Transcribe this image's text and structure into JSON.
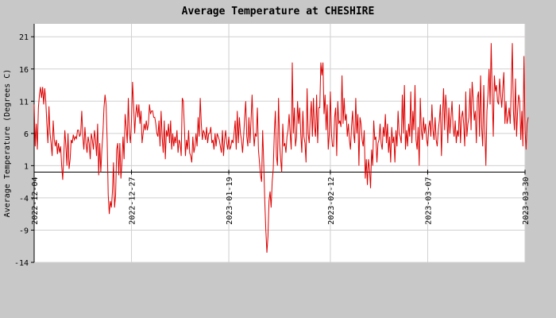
{
  "chart_data": {
    "type": "line",
    "title": "Average Temperature at CHESHIRE",
    "xlabel": "",
    "ylabel": "Average Temperature (Degrees C)",
    "ylim": [
      -14,
      23
    ],
    "yticks": [
      -14,
      -9,
      -4,
      1,
      6,
      11,
      16,
      21
    ],
    "xlim": [
      "2022-12-04",
      "2023-03-30"
    ],
    "xticks": [
      "2022-12-04",
      "2022-12-27",
      "2023-01-19",
      "2023-02-12",
      "2023-03-07",
      "2023-03-30"
    ],
    "grid": true,
    "baseline": 0,
    "colors": {
      "line": "#dd0000",
      "plot_bg": "#ffffff",
      "frame_bg": "#c8c8c8",
      "grid": "#d0d0d0"
    },
    "series": [
      {
        "x_start": "2022-12-04",
        "x_step_hours": 6,
        "values": [
          10.5,
          4.0,
          7.5,
          3.5,
          10.0,
          12.0,
          13.2,
          11.5,
          13.2,
          10.5,
          13.0,
          11.0,
          7.5,
          4.5,
          10.2,
          6.0,
          4.5,
          2.5,
          8.0,
          5.0,
          4.0,
          5.0,
          2.8,
          4.5,
          3.0,
          4.0,
          1.0,
          -1.2,
          2.5,
          6.5,
          4.0,
          1.0,
          6.0,
          0.5,
          2.0,
          5.0,
          4.5,
          5.8,
          5.0,
          5.5,
          5.2,
          6.5,
          6.5,
          5.5,
          6.0,
          9.5,
          5.5,
          3.5,
          7.0,
          4.5,
          3.0,
          5.5,
          4.5,
          2.0,
          6.0,
          5.0,
          3.5,
          6.5,
          5.0,
          2.5,
          7.5,
          -0.5,
          4.5,
          0.0,
          3.5,
          6.0,
          10.0,
          12.0,
          10.5,
          5.0,
          -3.5,
          -6.5,
          -4.5,
          -5.5,
          -3.0,
          1.5,
          -5.5,
          -3.5,
          3.5,
          4.5,
          -0.5,
          4.5,
          -1.0,
          1.5,
          5.5,
          2.0,
          9.0,
          7.0,
          4.5,
          11.5,
          6.0,
          4.5,
          8.0,
          14.0,
          10.5,
          6.0,
          9.0,
          10.5,
          8.5,
          10.5,
          7.5,
          9.5,
          4.5,
          6.0,
          7.5,
          6.5,
          8.0,
          6.5,
          7.5,
          10.5,
          9.0,
          9.5,
          9.5,
          8.5,
          8.5,
          7.5,
          6.0,
          5.5,
          8.0,
          4.0,
          9.5,
          5.5,
          3.0,
          8.0,
          2.0,
          6.5,
          5.5,
          7.5,
          4.5,
          8.0,
          3.5,
          6.0,
          4.0,
          5.5,
          4.5,
          6.5,
          3.0,
          5.0,
          4.5,
          2.5,
          11.5,
          11.0,
          7.0,
          2.5,
          5.0,
          3.5,
          6.5,
          3.0,
          2.5,
          1.5,
          5.5,
          3.0,
          4.0,
          6.0,
          4.0,
          8.5,
          5.5,
          11.5,
          7.5,
          5.0,
          6.5,
          6.0,
          5.0,
          7.0,
          4.5,
          6.0,
          6.0,
          7.0,
          4.5,
          5.0,
          3.5,
          6.0,
          4.0,
          6.0,
          5.5,
          5.0,
          4.0,
          3.0,
          6.5,
          2.5,
          5.0,
          6.5,
          4.5,
          3.5,
          5.5,
          3.5,
          4.0,
          5.0,
          4.5,
          6.0,
          8.0,
          3.5,
          9.5,
          4.5,
          8.5,
          6.0,
          5.0,
          3.0,
          5.5,
          8.5,
          11.0,
          5.5,
          4.0,
          8.5,
          4.5,
          8.0,
          12.0,
          7.0,
          4.0,
          6.0,
          5.5,
          10.0,
          3.5,
          1.5,
          -0.5,
          -1.5,
          6.5,
          1.5,
          -4.5,
          -9.0,
          -12.5,
          -10.0,
          -4.5,
          -3.0,
          -5.5,
          -1.5,
          0.5,
          6.0,
          9.5,
          2.5,
          1.0,
          11.5,
          4.5,
          2.0,
          0.0,
          7.5,
          4.0,
          4.5,
          3.0,
          5.5,
          6.5,
          9.0,
          6.0,
          3.5,
          17.0,
          6.0,
          10.0,
          4.0,
          5.5,
          11.0,
          7.5,
          10.0,
          6.0,
          3.0,
          9.5,
          5.5,
          4.5,
          1.5,
          13.0,
          6.0,
          4.5,
          8.5,
          11.0,
          5.5,
          11.5,
          7.0,
          5.5,
          12.0,
          4.5,
          10.0,
          10.0,
          17.0,
          15.0,
          17.0,
          9.0,
          12.0,
          6.5,
          10.5,
          3.5,
          6.0,
          12.5,
          6.0,
          4.0,
          4.0,
          8.5,
          10.0,
          2.5,
          11.0,
          7.5,
          8.0,
          7.0,
          15.0,
          7.5,
          11.5,
          8.0,
          9.0,
          5.5,
          7.5,
          5.0,
          3.5,
          7.0,
          9.5,
          6.0,
          4.5,
          11.5,
          6.0,
          9.0,
          1.0,
          8.5,
          7.5,
          5.0,
          4.0,
          6.5,
          -1.0,
          2.0,
          -2.0,
          2.0,
          0.5,
          -2.5,
          3.5,
          1.0,
          8.0,
          5.0,
          5.5,
          1.5,
          4.5,
          5.0,
          7.5,
          4.5,
          3.5,
          7.0,
          5.5,
          9.0,
          4.5,
          7.5,
          3.0,
          5.5,
          1.5,
          7.0,
          4.5,
          5.5,
          1.5,
          6.5,
          4.0,
          9.5,
          6.0,
          5.5,
          4.5,
          12.0,
          6.0,
          13.5,
          3.5,
          6.5,
          4.0,
          7.5,
          5.5,
          12.5,
          4.5,
          9.5,
          6.5,
          13.5,
          5.0,
          3.5,
          7.0,
          1.0,
          11.5,
          6.5,
          5.0,
          8.5,
          6.0,
          7.5,
          5.0,
          4.0,
          7.0,
          8.0,
          5.5,
          10.5,
          6.5,
          5.0,
          8.5,
          5.0,
          4.0,
          6.5,
          8.0,
          10.5,
          2.5,
          8.5,
          13.0,
          6.5,
          12.0,
          9.5,
          4.5,
          10.0,
          6.0,
          8.5,
          11.0,
          7.0,
          5.5,
          8.0,
          4.5,
          6.5,
          5.5,
          10.5,
          4.5,
          8.5,
          9.5,
          7.5,
          4.0,
          12.5,
          5.5,
          7.5,
          8.5,
          13.0,
          6.5,
          14.0,
          11.5,
          8.0,
          9.5,
          4.5,
          11.5,
          12.5,
          5.5,
          15.0,
          7.0,
          4.0,
          13.5,
          6.5,
          1.0,
          9.5,
          12.0,
          16.0,
          10.5,
          20.0,
          12.0,
          5.5,
          15.0,
          12.5,
          13.5,
          11.0,
          10.5,
          14.5,
          12.0,
          10.0,
          13.0,
          15.5,
          7.5,
          11.0,
          7.5,
          8.5,
          10.0,
          7.5,
          13.0,
          20.0,
          9.5,
          6.5,
          14.5,
          5.5,
          9.5,
          12.0,
          11.0,
          5.0,
          9.5,
          4.0,
          18.0,
          6.5,
          3.5,
          7.5,
          8.5
        ]
      }
    ]
  }
}
